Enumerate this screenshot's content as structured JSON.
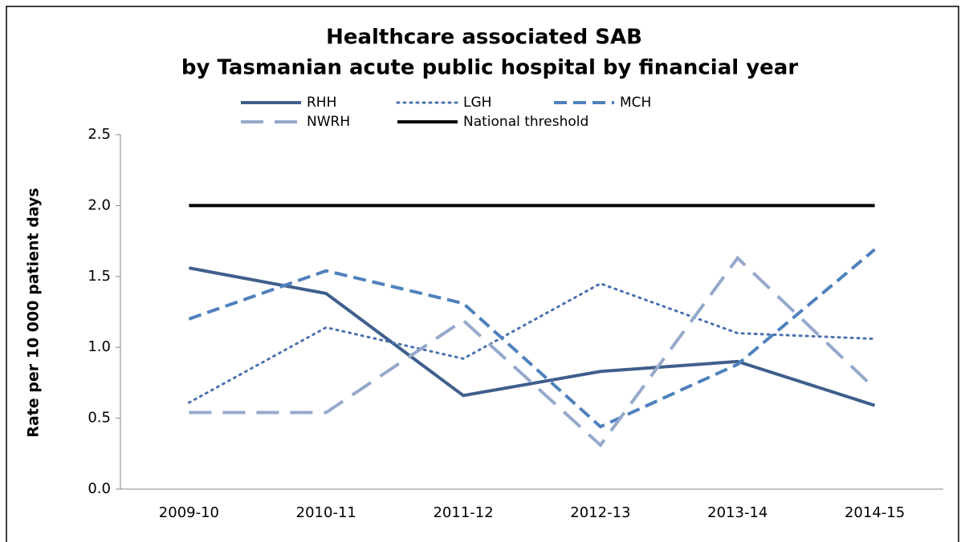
{
  "chart_data": {
    "type": "line",
    "title": "Healthcare associated SAB",
    "subtitle": "by Tasmanian acute public hospital by financial year",
    "y_label": "Rate per 10 000 patient days",
    "categories": [
      "2009-10",
      "2010-11",
      "2011-12",
      "2012-13",
      "2013-14",
      "2014-15"
    ],
    "series": [
      {
        "name": "RHH",
        "color": "#3f5f8c",
        "dash": "solid",
        "values": [
          1.56,
          1.38,
          0.66,
          0.83,
          0.9,
          0.59
        ]
      },
      {
        "name": "LGH",
        "color": "#4a72b0",
        "dash": "dotted",
        "values": [
          0.61,
          1.14,
          0.92,
          1.45,
          1.1,
          1.06
        ]
      },
      {
        "name": "MCH",
        "color": "#4f81bd",
        "dash": "dashed",
        "values": [
          1.2,
          1.54,
          1.31,
          0.44,
          0.88,
          1.69
        ]
      },
      {
        "name": "NWRH",
        "color": "#95a9cc",
        "dash": "longdash",
        "values": [
          0.54,
          0.54,
          1.19,
          0.31,
          1.63,
          0.71
        ]
      },
      {
        "name": "National threshold",
        "color": "#000000",
        "dash": "solid",
        "values": [
          2.0,
          2.0,
          2.0,
          2.0,
          2.0,
          2.0
        ]
      }
    ],
    "ylim": [
      0,
      2.5
    ],
    "yticks": [
      {
        "value": 0,
        "label": "0.0"
      },
      0.5,
      {
        "value": 1,
        "label": "1.0"
      },
      1.5,
      {
        "value": 2,
        "label": "2.0"
      },
      2.5
    ],
    "grid": false,
    "legend": "top"
  }
}
